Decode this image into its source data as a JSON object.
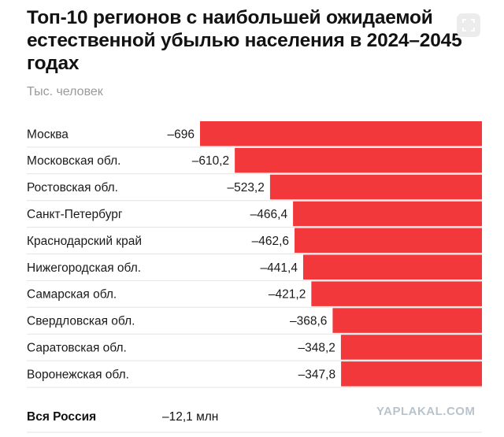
{
  "header": {
    "title": "Топ-10 регионов с наибольшей ожидаемой естественной убылью населения в 2024–2045 годах",
    "subtitle": "Тыс. человек"
  },
  "chart_data": {
    "type": "bar",
    "orientation": "horizontal",
    "categories": [
      "Москва",
      "Московская обл.",
      "Ростовская обл.",
      "Санкт-Петербург",
      "Краснодарский край",
      "Нижегородская обл.",
      "Самарская обл.",
      "Свердловская обл.",
      "Саратовская обл.",
      "Воронежская обл."
    ],
    "values": [
      -696,
      -610.2,
      -523.2,
      -466.4,
      -462.6,
      -441.4,
      -421.2,
      -368.6,
      -348.2,
      -347.8
    ],
    "value_labels": [
      "–696",
      "–610,2",
      "–523,2",
      "–466,4",
      "–462,6",
      "–441,4",
      "–421,2",
      "–368,6",
      "–348,2",
      "–347,8"
    ],
    "bar_color": "#f2383a",
    "grid": false
  },
  "total": {
    "label": "Вся Россия",
    "value": "–12,1 млн"
  },
  "watermark": "YAPLAKAL.COM",
  "icons": {
    "expand": "expand-icon"
  }
}
